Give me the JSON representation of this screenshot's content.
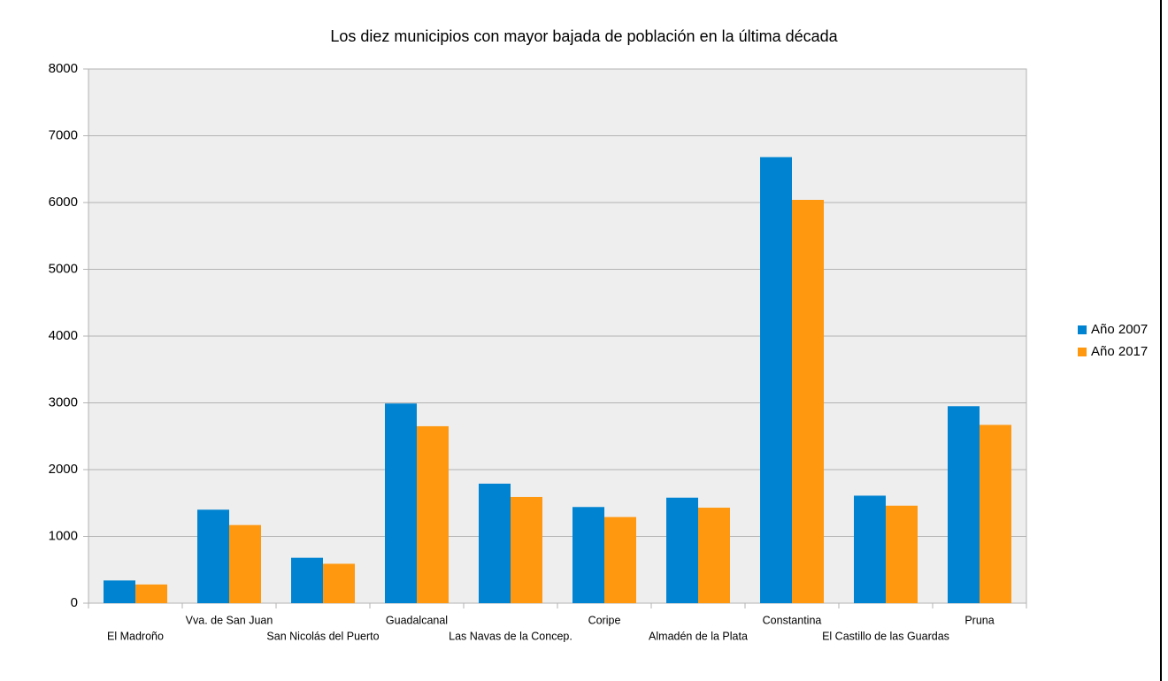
{
  "chart_data": {
    "type": "bar",
    "title": "Los diez municipios con mayor bajada de población en la última década",
    "categories": [
      "El Madroño",
      "Vva. de San Juan",
      "San Nicolás del Puerto",
      "Guadalcanal",
      "Las Navas de la Concep.",
      "Coripe",
      "Almadén de la Plata",
      "Constantina",
      "El Castillo de las Guardas",
      "Pruna"
    ],
    "series": [
      {
        "name": "Año 2007",
        "color": "#0083d1",
        "values": [
          340,
          1400,
          680,
          2990,
          1790,
          1440,
          1580,
          6680,
          1610,
          2950
        ]
      },
      {
        "name": "Año 2017",
        "color": "#ff980f",
        "values": [
          280,
          1170,
          590,
          2650,
          1590,
          1290,
          1430,
          6040,
          1460,
          2670
        ]
      }
    ],
    "ylim": [
      0,
      8000
    ],
    "yticks": [
      0,
      1000,
      2000,
      3000,
      4000,
      5000,
      6000,
      7000,
      8000
    ],
    "grid": true,
    "legend": "right"
  }
}
